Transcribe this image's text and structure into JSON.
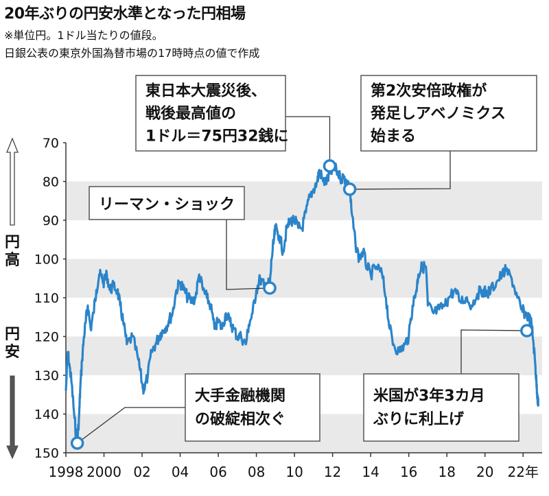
{
  "title": "20年ぶりの円安水準となった円相場",
  "notes": [
    "※単位円。1ドル当たりの値段。",
    "日銀公表の東京外国為替市場の17時時点の値で作成"
  ],
  "axis_side": {
    "top": "円高",
    "bottom": "円安"
  },
  "colors": {
    "line": "#2b84c9",
    "band": "#e9e9e9",
    "text": "#111111",
    "box_border": "#555555"
  },
  "chart_data": {
    "type": "line",
    "title": "20年ぶりの円安水準となった円相場",
    "xlabel": "",
    "ylabel": "",
    "y_inverted": true,
    "ylim": [
      70,
      150
    ],
    "xlim": [
      1998,
      2023
    ],
    "yticks": [
      70,
      80,
      90,
      100,
      110,
      120,
      130,
      140,
      150
    ],
    "xticks": [
      {
        "v": 1998,
        "label": "1998"
      },
      {
        "v": 2000,
        "label": "2000"
      },
      {
        "v": 2002,
        "label": "02"
      },
      {
        "v": 2004,
        "label": "04"
      },
      {
        "v": 2006,
        "label": "06"
      },
      {
        "v": 2008,
        "label": "08"
      },
      {
        "v": 2010,
        "label": "10"
      },
      {
        "v": 2012,
        "label": "12"
      },
      {
        "v": 2014,
        "label": "14"
      },
      {
        "v": 2016,
        "label": "16"
      },
      {
        "v": 2018,
        "label": "18"
      },
      {
        "v": 2020,
        "label": "20"
      },
      {
        "v": 2022,
        "label": "22年"
      }
    ],
    "grid_bands": true,
    "series": [
      {
        "x": [
          1998.0,
          1998.1,
          1998.2,
          1998.3,
          1998.45,
          1998.55,
          1998.6,
          1998.7,
          1998.75,
          1998.85,
          1998.95,
          1999.05,
          1999.15,
          1999.3,
          1999.45,
          1999.6,
          1999.75,
          1999.9,
          2000.0,
          2000.15,
          2000.3,
          2000.5,
          2000.7,
          2000.85,
          2001.0,
          2001.2,
          2001.5,
          2001.8,
          2002.0,
          2002.1,
          2002.3,
          2002.5,
          2002.7,
          2002.9,
          2003.0,
          2003.2,
          2003.4,
          2003.6,
          2003.8,
          2004.0,
          2004.2,
          2004.4,
          2004.6,
          2004.8,
          2005.0,
          2005.2,
          2005.4,
          2005.6,
          2005.8,
          2006.0,
          2006.2,
          2006.4,
          2006.6,
          2006.8,
          2007.0,
          2007.2,
          2007.45,
          2007.6,
          2007.8,
          2008.0,
          2008.2,
          2008.4,
          2008.6,
          2008.7,
          2008.8,
          2008.9,
          2009.0,
          2009.2,
          2009.4,
          2009.6,
          2009.8,
          2010.0,
          2010.2,
          2010.4,
          2010.6,
          2010.8,
          2011.0,
          2011.2,
          2011.3,
          2011.5,
          2011.7,
          2011.85,
          2012.0,
          2012.2,
          2012.4,
          2012.6,
          2012.75,
          2012.9,
          2013.0,
          2013.2,
          2013.4,
          2013.6,
          2013.8,
          2014.0,
          2014.3,
          2014.6,
          2014.8,
          2015.0,
          2015.2,
          2015.5,
          2015.8,
          2016.0,
          2016.2,
          2016.4,
          2016.5,
          2016.7,
          2016.9,
          2017.0,
          2017.3,
          2017.6,
          2017.9,
          2018.1,
          2018.4,
          2018.7,
          2019.0,
          2019.3,
          2019.6,
          2019.9,
          2020.1,
          2020.3,
          2020.6,
          2020.9,
          2021.1,
          2021.4,
          2021.7,
          2021.9,
          2022.1,
          2022.3,
          2022.45,
          2022.55,
          2022.65,
          2022.7,
          2022.75,
          2022.8
        ],
        "y": [
          134,
          124,
          128,
          132,
          141,
          146,
          147.5,
          140,
          134,
          126,
          120,
          116,
          112,
          118,
          114,
          108,
          104,
          105,
          106,
          104,
          108,
          107,
          108,
          112,
          116,
          122,
          120,
          126,
          132,
          134,
          130,
          124,
          122,
          120,
          119,
          118,
          116,
          114,
          108,
          106,
          108,
          110,
          111,
          110,
          104,
          108,
          110,
          112,
          118,
          116,
          118,
          114,
          116,
          118,
          120,
          120,
          122,
          117,
          114,
          108,
          105,
          107,
          106,
          107.5,
          100,
          96,
          92,
          94,
          98,
          92,
          90,
          90,
          92,
          92,
          88,
          84,
          82,
          80,
          77,
          80,
          80,
          78,
          77,
          77,
          79,
          79,
          80,
          82,
          88,
          96,
          100,
          98,
          102,
          104,
          102,
          104,
          110,
          118,
          122,
          124,
          122,
          120,
          112,
          108,
          104,
          102,
          102,
          112,
          114,
          113,
          112,
          110,
          108,
          111,
          110,
          112,
          109,
          108,
          109,
          108,
          106,
          104,
          103,
          105,
          110,
          113,
          114,
          115,
          117,
          122,
          128,
          132,
          135,
          138
        ],
        "points": []
      }
    ],
    "annotations": [
      {
        "id": "a1",
        "text": [
          "東日本大震災後、",
          "戦後最高値の",
          "1ドル＝75円32銭に"
        ],
        "x": 2011.85,
        "y": 76
      },
      {
        "id": "a2",
        "text": [
          "第2次安倍政権が",
          "発足しアベノミクス",
          "始まる"
        ],
        "x": 2012.9,
        "y": 82
      },
      {
        "id": "a3",
        "text": [
          "リーマン・ショック"
        ],
        "x": 2008.7,
        "y": 107.5
      },
      {
        "id": "a4",
        "text": [
          "大手金融機関",
          "の破綻相次ぐ"
        ],
        "x": 1998.6,
        "y": 147.5
      },
      {
        "id": "a5",
        "text": [
          "米国が3年3カ月",
          "ぶりに利上げ"
        ],
        "x": 2022.2,
        "y": 118.5
      }
    ]
  }
}
